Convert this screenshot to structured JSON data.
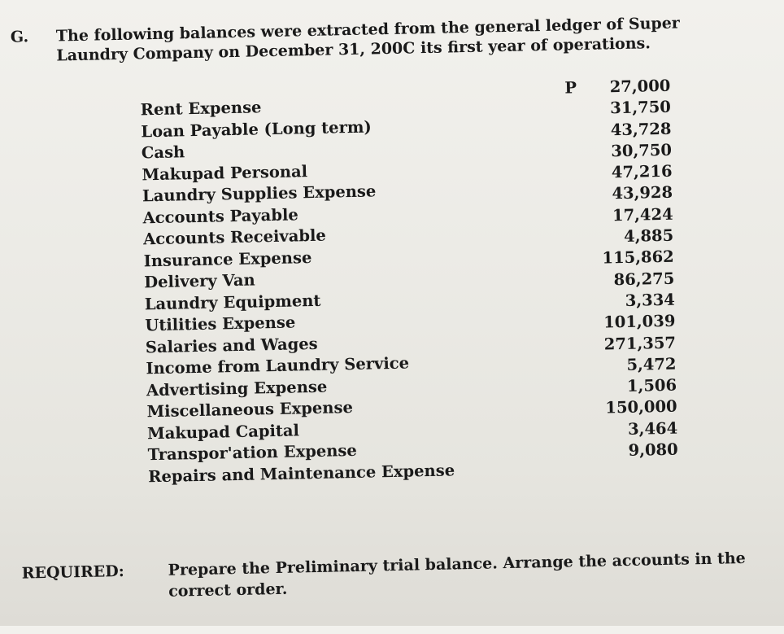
{
  "problem": {
    "letter": "G.",
    "text": "The following balances were extracted from the general ledger of Super Laundry Company on December 31, 200C its first year of operations."
  },
  "accounts": [
    "Rent Expense",
    "Loan Payable (Long term)",
    "Cash",
    "Makupad Personal",
    "Laundry Supplies Expense",
    "Accounts Payable",
    "Accounts Receivable",
    "Insurance Expense",
    "Delivery Van",
    "Laundry Equipment",
    "Utilities Expense",
    "Salaries and Wages",
    "Income from Laundry Service",
    "Advertising Expense",
    "Miscellaneous Expense",
    "Makupad Capital",
    "Transpor'ation Expense",
    "Repairs and Maintenance Expense"
  ],
  "currency": "P",
  "amounts": [
    "27,000",
    "31,750",
    "43,728",
    "30,750",
    "47,216",
    "43,928",
    "17,424",
    "4,885",
    "115,862",
    "86,275",
    "3,334",
    "101,039",
    "271,357",
    "5,472",
    "1,506",
    "150,000",
    "3,464",
    "9,080"
  ],
  "required": {
    "label": "REQUIRED:",
    "text": "Prepare the Preliminary trial balance. Arrange the accounts in the correct order."
  }
}
